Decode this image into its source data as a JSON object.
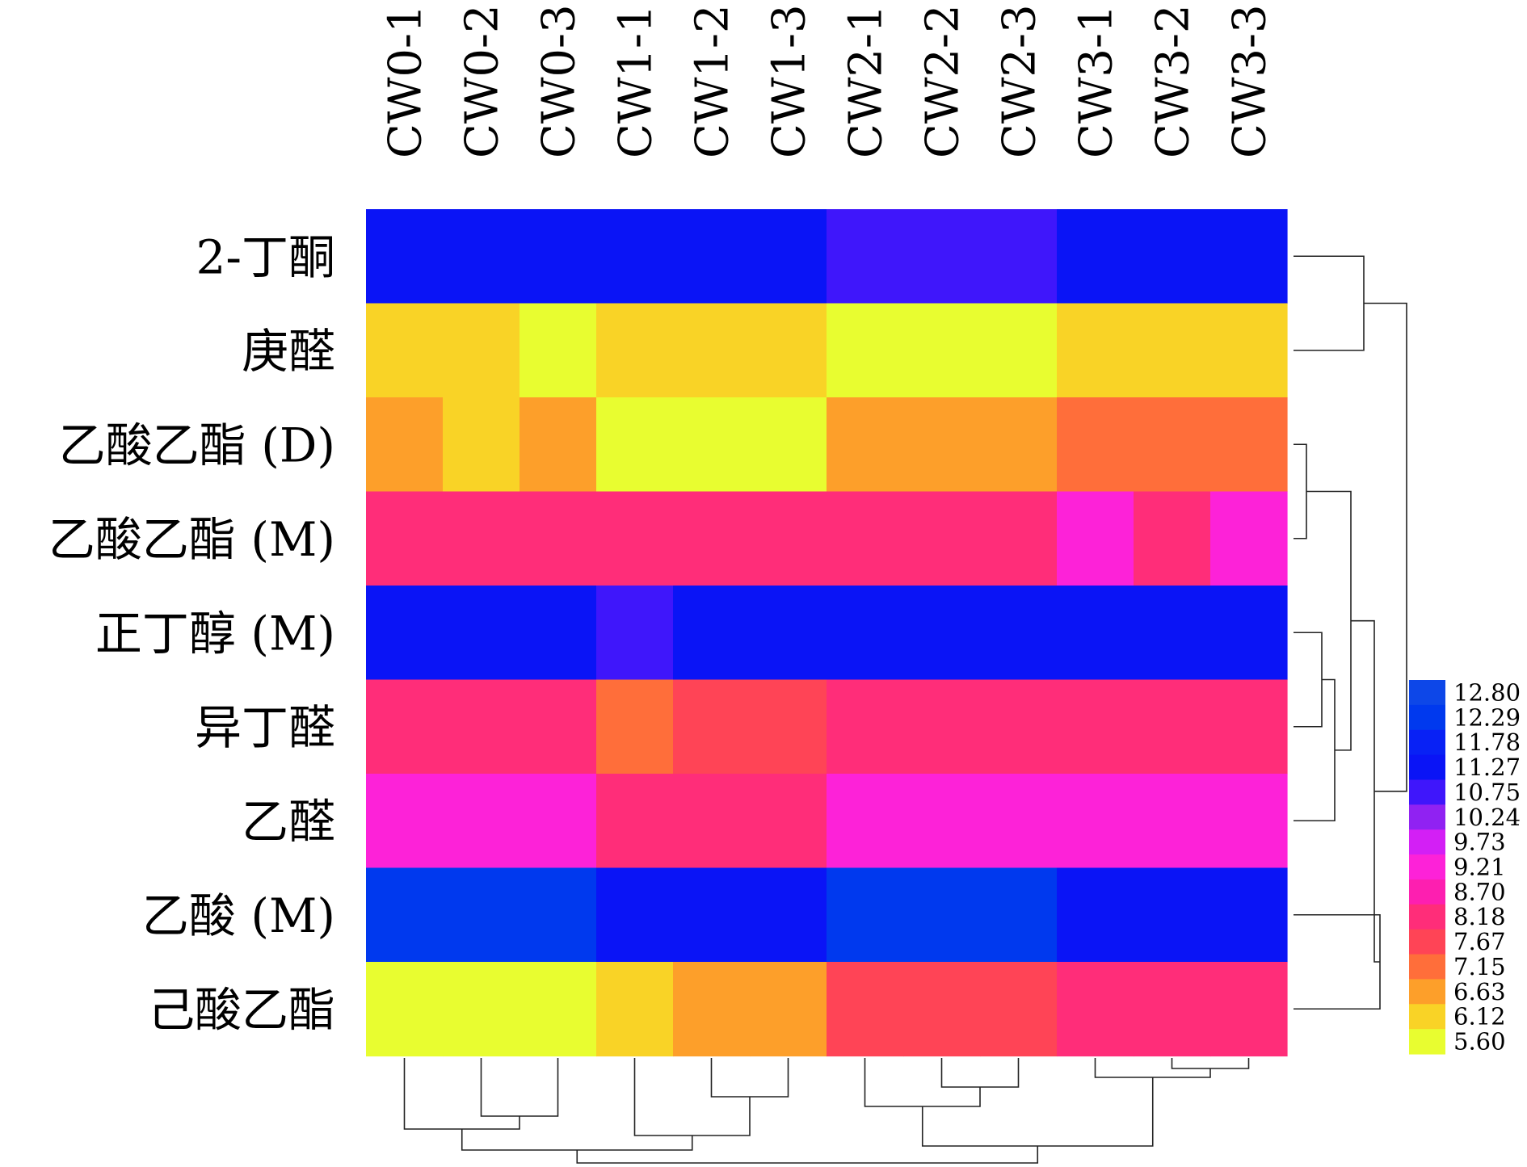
{
  "chart_data": {
    "type": "heatmap",
    "title": "",
    "xlabel": "",
    "ylabel": "",
    "columns": [
      "CW0-1",
      "CW0-2",
      "CW0-3",
      "CW1-1",
      "CW1-2",
      "CW1-3",
      "CW2-1",
      "CW2-2",
      "CW2-3",
      "CW3-1",
      "CW3-2",
      "CW3-3"
    ],
    "rows": [
      "2-丁酮",
      "庚醛",
      "乙酸乙酯 (D)",
      "乙酸乙酯 (M)",
      "正丁醇 (M)",
      "异丁醛",
      "乙醛",
      "乙酸 (M)",
      "己酸乙酯"
    ],
    "values": [
      [
        11.5,
        11.5,
        11.5,
        11.5,
        11.5,
        11.5,
        11.0,
        11.0,
        11.0,
        11.5,
        11.5,
        11.5
      ],
      [
        6.1,
        6.1,
        5.6,
        6.1,
        6.1,
        6.1,
        5.6,
        5.6,
        5.6,
        6.1,
        6.1,
        6.1
      ],
      [
        6.6,
        6.1,
        6.6,
        5.6,
        5.6,
        5.6,
        6.6,
        6.6,
        6.6,
        7.2,
        7.2,
        7.2
      ],
      [
        8.4,
        8.4,
        8.4,
        8.0,
        8.0,
        8.0,
        8.4,
        8.4,
        8.4,
        9.0,
        8.4,
        9.0
      ],
      [
        11.5,
        11.5,
        11.5,
        11.0,
        11.5,
        11.5,
        11.5,
        11.5,
        11.5,
        11.5,
        11.5,
        11.5
      ],
      [
        8.4,
        8.4,
        8.4,
        7.2,
        7.7,
        7.7,
        8.0,
        8.0,
        8.0,
        8.4,
        8.4,
        8.4
      ],
      [
        9.0,
        9.0,
        9.0,
        8.4,
        8.4,
        8.4,
        9.0,
        9.0,
        9.0,
        9.0,
        9.0,
        9.0
      ],
      [
        12.3,
        12.3,
        12.3,
        11.5,
        11.5,
        11.5,
        12.3,
        12.3,
        12.3,
        11.5,
        11.5,
        11.5
      ],
      [
        5.6,
        5.6,
        5.6,
        6.1,
        6.6,
        6.6,
        7.7,
        7.7,
        7.7,
        8.0,
        8.0,
        8.0
      ]
    ],
    "color_scale": {
      "ticks": [
        "12.80",
        "12.29",
        "11.78",
        "11.27",
        "10.75",
        "10.24",
        "9.73",
        "9.21",
        "8.70",
        "8.18",
        "7.67",
        "7.15",
        "6.63",
        "6.12",
        "5.60"
      ],
      "min": 5.6,
      "max": 12.8,
      "colors_high_to_low": [
        "#0d47e8",
        "#0039ee",
        "#0821f5",
        "#0a14f6",
        "#3f16fb",
        "#9022f2",
        "#d31ff5",
        "#fd22d8",
        "#fd1fb0",
        "#ff2d79",
        "#ff4456",
        "#ff6e3a",
        "#fd9f2a",
        "#f9d326",
        "#e8fd30"
      ],
      "placement": "right"
    },
    "row_dendrogram": true,
    "column_dendrogram": true
  }
}
